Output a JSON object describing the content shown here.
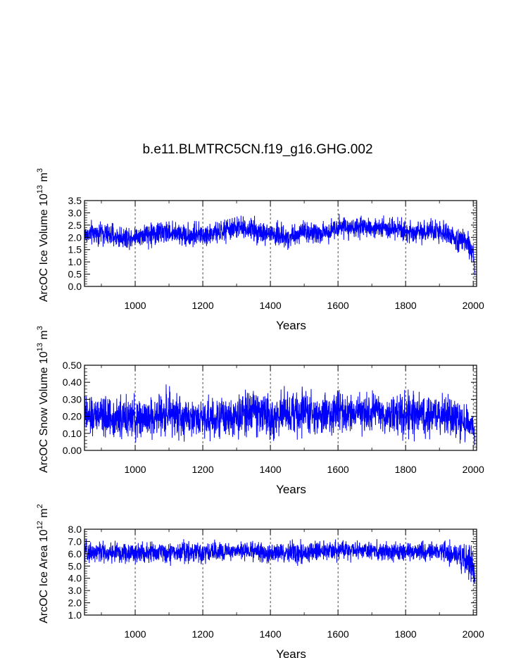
{
  "title": "b.e11.BLMTRC5CN.f19_g16.GHG.002",
  "line_color": "#0000ff",
  "chart_data": [
    {
      "type": "line",
      "xlabel": "Years",
      "ylabel": {
        "prefix": "ArcOC Ice Volume 10",
        "exp": "13",
        "unit": " m",
        "unit_exp": "3"
      },
      "xlim": [
        850,
        2010
      ],
      "ylim": [
        0.0,
        3.5
      ],
      "xticks": [
        1000,
        1200,
        1400,
        1600,
        1800,
        2000
      ],
      "yticks": [
        "0.0",
        "0.5",
        "1.0",
        "1.5",
        "2.0",
        "2.5",
        "3.0",
        "3.5"
      ],
      "grid": "vertical dashed lines at x ticks",
      "series": [
        {
          "x": [
            850,
            900,
            950,
            1000,
            1050,
            1100,
            1150,
            1200,
            1250,
            1300,
            1350,
            1400,
            1450,
            1500,
            1550,
            1600,
            1650,
            1700,
            1750,
            1800,
            1850,
            1900,
            1950,
            1980,
            2000,
            2005
          ],
          "mean": [
            2.1,
            2.2,
            2.0,
            2.0,
            2.2,
            2.2,
            2.1,
            2.1,
            2.2,
            2.4,
            2.3,
            2.2,
            2.0,
            2.3,
            2.1,
            2.5,
            2.4,
            2.4,
            2.5,
            2.3,
            2.3,
            2.2,
            2.0,
            1.8,
            1.3,
            0.5
          ],
          "low": [
            1.5,
            1.6,
            1.4,
            1.5,
            1.5,
            1.6,
            1.5,
            1.5,
            1.6,
            1.8,
            1.7,
            1.4,
            1.4,
            1.7,
            1.5,
            1.9,
            1.8,
            1.9,
            1.8,
            1.6,
            1.6,
            1.6,
            1.3,
            1.0,
            0.6,
            0.2
          ],
          "high": [
            2.7,
            2.8,
            2.6,
            2.6,
            2.8,
            2.9,
            2.7,
            2.7,
            2.8,
            3.0,
            2.9,
            2.8,
            2.6,
            2.8,
            2.7,
            3.0,
            2.9,
            2.9,
            2.9,
            2.8,
            2.8,
            2.8,
            2.6,
            2.4,
            1.9,
            1.1
          ]
        }
      ]
    },
    {
      "type": "line",
      "xlabel": "Years",
      "ylabel": {
        "prefix": "ArcOC Snow Volume 10",
        "exp": "13",
        "unit": " m",
        "unit_exp": "3"
      },
      "xlim": [
        850,
        2010
      ],
      "ylim": [
        0.0,
        0.5
      ],
      "xticks": [
        1000,
        1200,
        1400,
        1600,
        1800,
        2000
      ],
      "yticks": [
        "0.00",
        "0.10",
        "0.20",
        "0.30",
        "0.40",
        "0.50"
      ],
      "grid": "vertical dashed lines at x ticks",
      "series": [
        {
          "x": [
            850,
            900,
            950,
            1000,
            1050,
            1100,
            1150,
            1200,
            1250,
            1300,
            1350,
            1400,
            1450,
            1500,
            1550,
            1600,
            1650,
            1700,
            1750,
            1800,
            1850,
            1900,
            1950,
            1980,
            2000,
            2005
          ],
          "mean": [
            0.19,
            0.2,
            0.19,
            0.18,
            0.19,
            0.2,
            0.19,
            0.19,
            0.19,
            0.2,
            0.22,
            0.18,
            0.2,
            0.21,
            0.2,
            0.21,
            0.21,
            0.21,
            0.2,
            0.2,
            0.2,
            0.2,
            0.18,
            0.16,
            0.12,
            0.08
          ],
          "low": [
            0.05,
            0.05,
            0.04,
            0.04,
            0.05,
            0.05,
            0.05,
            0.05,
            0.05,
            0.06,
            0.07,
            0.04,
            0.06,
            0.06,
            0.05,
            0.06,
            0.06,
            0.06,
            0.06,
            0.05,
            0.05,
            0.05,
            0.04,
            0.03,
            0.01,
            0.0
          ],
          "high": [
            0.34,
            0.36,
            0.34,
            0.34,
            0.35,
            0.4,
            0.35,
            0.35,
            0.35,
            0.36,
            0.42,
            0.38,
            0.38,
            0.38,
            0.37,
            0.38,
            0.38,
            0.38,
            0.37,
            0.37,
            0.36,
            0.36,
            0.33,
            0.3,
            0.26,
            0.18
          ]
        }
      ]
    },
    {
      "type": "line",
      "xlabel": "Years",
      "ylabel": {
        "prefix": "ArcOC Ice Area 10",
        "exp": "12",
        "unit": " m",
        "unit_exp": "2"
      },
      "xlim": [
        850,
        2010
      ],
      "ylim": [
        1.0,
        8.0
      ],
      "xticks": [
        1000,
        1200,
        1400,
        1600,
        1800,
        2000
      ],
      "yticks": [
        "1.0",
        "2.0",
        "3.0",
        "4.0",
        "5.0",
        "6.0",
        "7.0",
        "8.0"
      ],
      "grid": "vertical dashed lines at x ticks",
      "series": [
        {
          "x": [
            850,
            900,
            950,
            1000,
            1050,
            1100,
            1150,
            1200,
            1250,
            1300,
            1350,
            1400,
            1450,
            1500,
            1550,
            1600,
            1650,
            1700,
            1750,
            1800,
            1850,
            1900,
            1950,
            1980,
            2000,
            2005
          ],
          "mean": [
            6.2,
            6.2,
            6.1,
            6.1,
            6.2,
            6.2,
            6.1,
            6.2,
            6.2,
            6.3,
            6.3,
            6.2,
            6.1,
            6.2,
            6.2,
            6.3,
            6.3,
            6.3,
            6.3,
            6.2,
            6.2,
            6.2,
            6.0,
            5.6,
            4.8,
            3.2
          ],
          "low": [
            5.0,
            5.0,
            4.8,
            4.8,
            5.0,
            5.0,
            4.9,
            5.0,
            5.0,
            5.2,
            5.2,
            4.8,
            4.9,
            5.0,
            5.0,
            5.2,
            5.2,
            5.2,
            5.1,
            5.0,
            5.0,
            5.0,
            4.6,
            4.0,
            3.2,
            1.9
          ],
          "high": [
            7.2,
            7.2,
            7.2,
            7.2,
            7.2,
            7.2,
            7.2,
            7.2,
            7.2,
            7.2,
            7.2,
            7.2,
            7.2,
            7.2,
            7.2,
            7.2,
            7.2,
            7.2,
            7.2,
            7.2,
            7.2,
            7.2,
            7.2,
            7.2,
            7.2,
            7.2
          ]
        }
      ]
    }
  ]
}
